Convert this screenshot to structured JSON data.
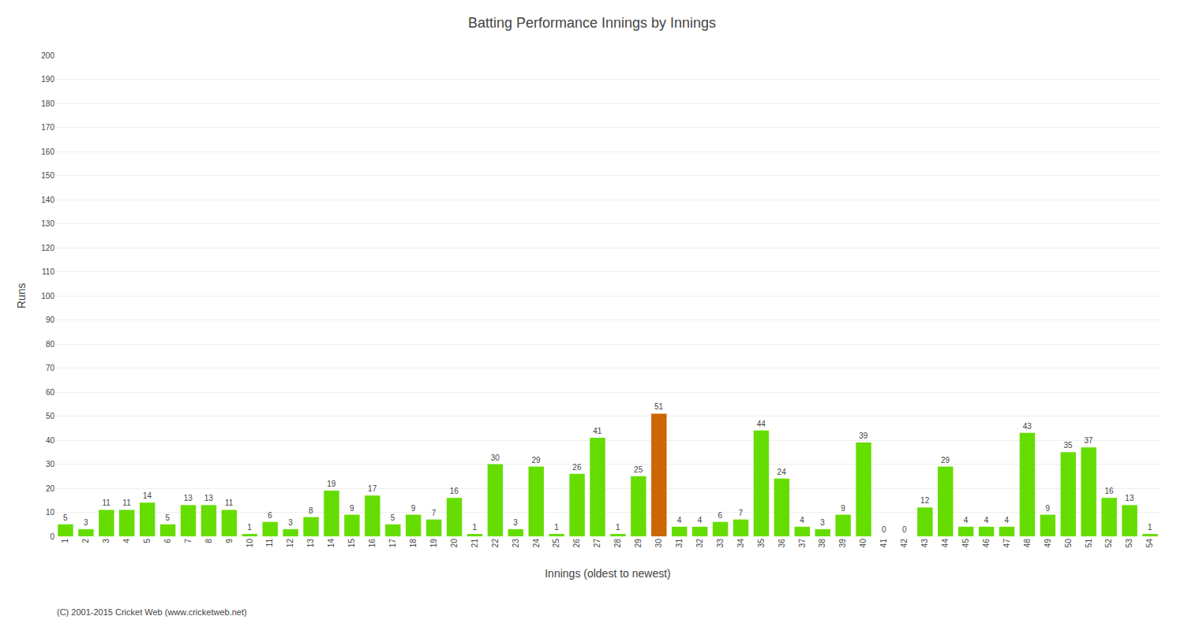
{
  "chart_data": {
    "type": "bar",
    "title": "Batting Performance Innings by Innings",
    "x_label": "Innings (oldest to newest)",
    "y_label": "Runs",
    "categories": [
      "1",
      "2",
      "3",
      "4",
      "5",
      "6",
      "7",
      "8",
      "9",
      "10",
      "11",
      "12",
      "13",
      "14",
      "15",
      "16",
      "17",
      "18",
      "19",
      "20",
      "21",
      "22",
      "23",
      "24",
      "25",
      "26",
      "27",
      "28",
      "29",
      "30",
      "31",
      "32",
      "33",
      "34",
      "35",
      "36",
      "37",
      "38",
      "39",
      "40",
      "41",
      "42",
      "43",
      "44",
      "45",
      "46",
      "47",
      "48",
      "49",
      "50",
      "51",
      "52",
      "53",
      "54"
    ],
    "values": [
      5,
      3,
      11,
      11,
      14,
      5,
      13,
      13,
      11,
      1,
      6,
      3,
      8,
      19,
      9,
      17,
      5,
      9,
      7,
      16,
      1,
      30,
      3,
      29,
      1,
      26,
      41,
      1,
      25,
      51,
      4,
      4,
      6,
      7,
      44,
      24,
      4,
      3,
      9,
      39,
      0,
      0,
      12,
      29,
      4,
      4,
      4,
      43,
      9,
      35,
      37,
      16,
      13,
      1
    ],
    "colors": [
      "#66dd00",
      "#66dd00",
      "#66dd00",
      "#66dd00",
      "#66dd00",
      "#66dd00",
      "#66dd00",
      "#66dd00",
      "#66dd00",
      "#66dd00",
      "#66dd00",
      "#66dd00",
      "#66dd00",
      "#66dd00",
      "#66dd00",
      "#66dd00",
      "#66dd00",
      "#66dd00",
      "#66dd00",
      "#66dd00",
      "#66dd00",
      "#66dd00",
      "#66dd00",
      "#66dd00",
      "#66dd00",
      "#66dd00",
      "#66dd00",
      "#66dd00",
      "#66dd00",
      "#cc6600",
      "#66dd00",
      "#66dd00",
      "#66dd00",
      "#66dd00",
      "#66dd00",
      "#66dd00",
      "#66dd00",
      "#66dd00",
      "#66dd00",
      "#66dd00",
      "#66dd00",
      "#66dd00",
      "#66dd00",
      "#66dd00",
      "#66dd00",
      "#66dd00",
      "#66dd00",
      "#66dd00",
      "#66dd00",
      "#66dd00",
      "#66dd00",
      "#66dd00",
      "#66dd00",
      "#66dd00"
    ],
    "data_labels": true,
    "ylim": [
      0,
      200
    ],
    "yticks": [
      0,
      10,
      20,
      30,
      40,
      50,
      60,
      70,
      80,
      90,
      100,
      110,
      120,
      130,
      140,
      150,
      160,
      170,
      180,
      190,
      200
    ],
    "grid": true,
    "annotations": [
      "(C) 2001-2015 Cricket Web (www.cricketweb.net)"
    ]
  }
}
